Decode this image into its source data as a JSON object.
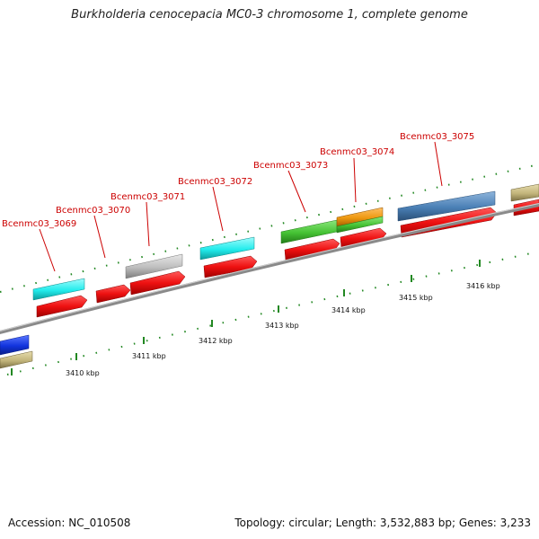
{
  "title": "Burkholderia cenocepacia MC0-3 chromosome 1, complete genome",
  "footer": {
    "accession": "Accession: NC_010508",
    "summary": "Topology: circular; Length: 3,532,883 bp; Genes: 3,233"
  },
  "gene_labels": [
    "Bcenmc03_3069",
    "Bcenmc03_3070",
    "Bcenmc03_3071",
    "Bcenmc03_3072",
    "Bcenmc03_3073",
    "Bcenmc03_3074",
    "Bcenmc03_3075"
  ],
  "kbp_labels": [
    "3410 kbp",
    "3411 kbp",
    "3412 kbp",
    "3413 kbp",
    "3414 kbp",
    "3415 kbp",
    "3416 kbp"
  ],
  "colors": {
    "label_red": "#cc0000",
    "cds_red": "#ee1111",
    "cyan": "#22ecec",
    "gray": "#bdbdbd",
    "green": "#44c233",
    "orange": "#ee9911",
    "steelblue": "#4a7fb5",
    "tan": "#c2b47a",
    "blue": "#1133dd",
    "tick_green": "#228822",
    "backbone": "#8a8a8a"
  }
}
